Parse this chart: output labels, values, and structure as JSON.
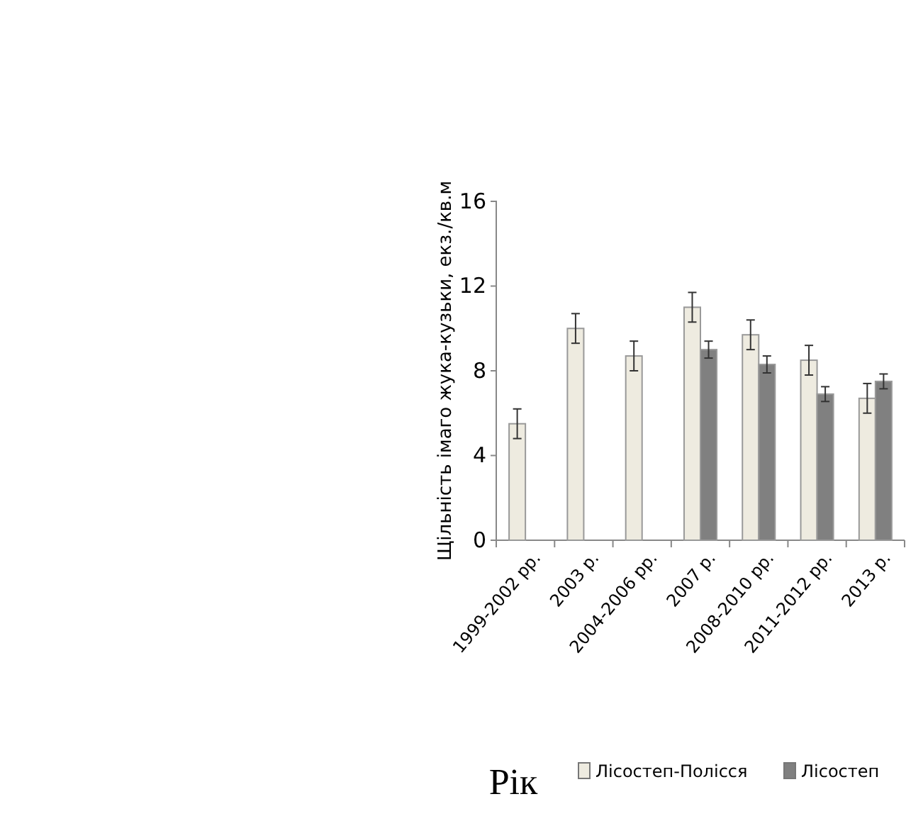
{
  "chart_data": {
    "type": "bar",
    "xlabel": "Рік",
    "ylabel": "Щільність  імаго жука-кузьки, екз./кв.м",
    "categories": [
      "1999-2002 рр.",
      "2003 р.",
      "2004-2006 рр.",
      "2007 р.",
      "2008-2010 рр.",
      "2011-2012 рр.",
      "2013 р."
    ],
    "series": [
      {
        "name": "Лісостеп-Полісся",
        "color": "#eeebe0",
        "values": [
          5.5,
          10,
          8.7,
          11,
          9.7,
          8.5,
          6.7
        ],
        "errors": [
          0.7,
          0.7,
          0.7,
          0.7,
          0.7,
          0.7,
          0.7
        ]
      },
      {
        "name": "Лісостеп",
        "color": "#808080",
        "values": [
          null,
          null,
          null,
          9.0,
          8.3,
          6.9,
          7.5
        ],
        "errors": [
          null,
          null,
          null,
          0.4,
          0.4,
          0.35,
          0.35
        ]
      }
    ],
    "ylim": [
      0,
      16
    ],
    "yticks": [
      0,
      4,
      8,
      12,
      16
    ],
    "grid": false,
    "legend": "bottom"
  }
}
